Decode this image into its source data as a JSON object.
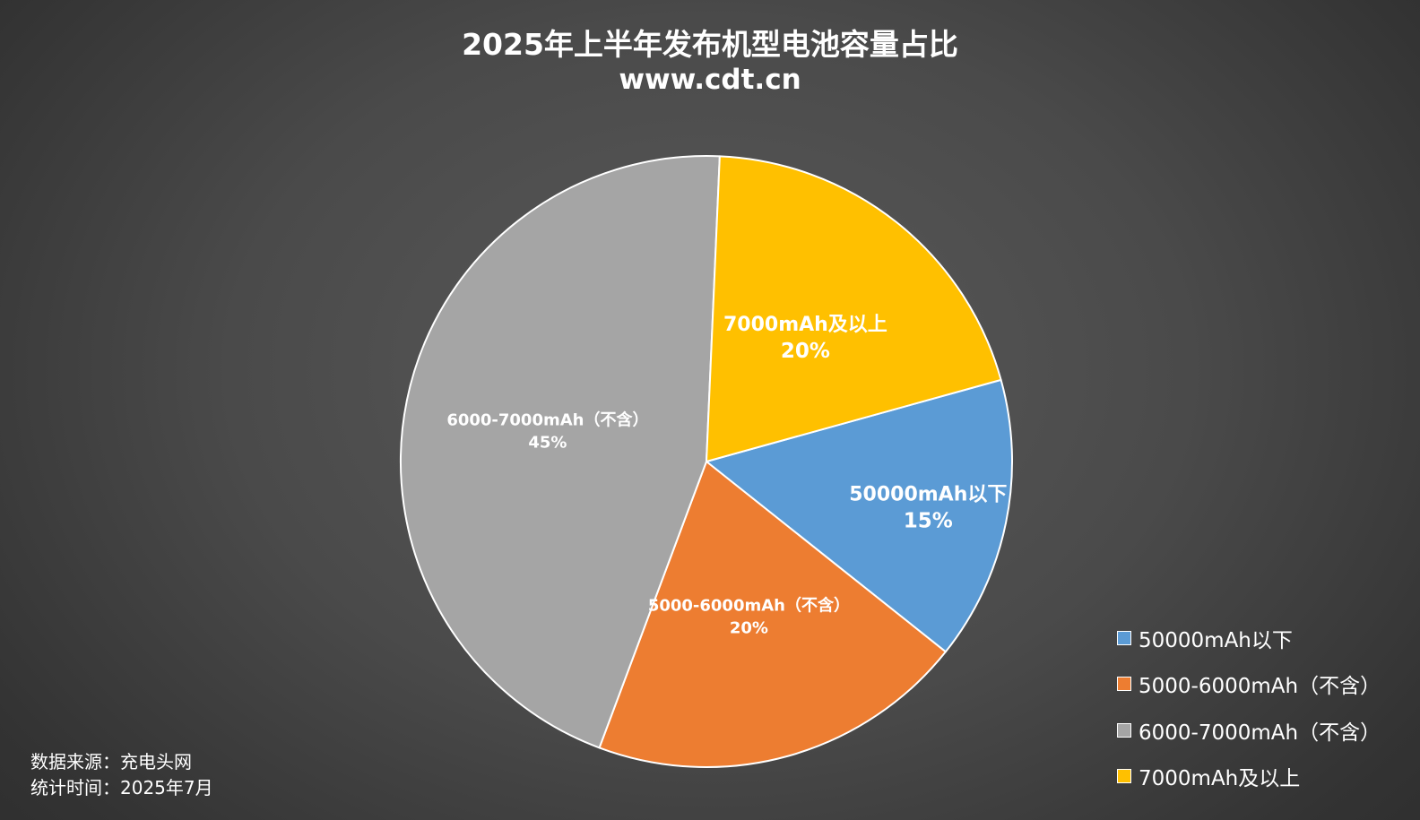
{
  "chart_data": {
    "type": "pie",
    "title": "2025年上半年发布机型电池容量占比",
    "subtitle": "www.cdt.cn",
    "slices": [
      {
        "name": "50000mAh以下",
        "label": "50000mAh以下",
        "value": 15,
        "percent_label": "15%",
        "color": "#5b9bd5"
      },
      {
        "name": "5000-6000mAh（不含）",
        "label": "5000-6000mAh（不含）",
        "value": 20,
        "percent_label": "20%",
        "color": "#ed7d31"
      },
      {
        "name": "6000-7000mAh（不含）",
        "label": "6000-7000mAh（不含）",
        "value": 45,
        "percent_label": "45%",
        "color": "#a5a5a5"
      },
      {
        "name": "7000mAh及以上",
        "label": "7000mAh及以上",
        "value": 20,
        "percent_label": "20%",
        "color": "#ffc000"
      }
    ],
    "legend": {
      "placement": "bottom-right",
      "entries": [
        "50000mAh以下",
        "5000-6000mAh（不含）",
        "6000-7000mAh（不含）",
        "7000mAh及以上"
      ]
    }
  },
  "footnote": {
    "source": "数据来源：充电头网",
    "date": "统计时间：2025年7月"
  },
  "colors": {
    "slice_border": "#ffffff",
    "text": "#ffffff"
  }
}
